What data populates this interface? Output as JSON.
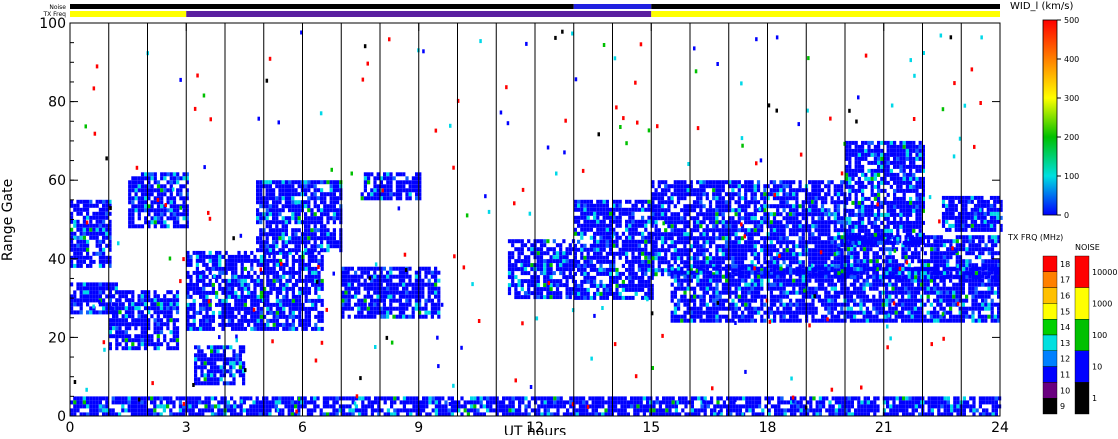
{
  "header_labels": {
    "noise": "Noise",
    "txfreq": "TX Freq"
  },
  "chart_data": {
    "type": "heatmap",
    "xlabel": "UT hours",
    "ylabel": "Range Gate",
    "xlim": [
      0,
      24
    ],
    "ylim": [
      0,
      100
    ],
    "x_ticks": [
      "0",
      "3",
      "6",
      "9",
      "12",
      "15",
      "18",
      "21",
      "24"
    ],
    "y_ticks": [
      "0",
      "20",
      "40",
      "60",
      "80",
      "100"
    ],
    "hour_lines": [
      1,
      2,
      3,
      4,
      5,
      6,
      7,
      8,
      9,
      10,
      11,
      12,
      13,
      14,
      15,
      16,
      17,
      18,
      19,
      20,
      21,
      22,
      23
    ],
    "tx_freq_segments": [
      {
        "start": 0,
        "end": 3,
        "color": "#ffff00"
      },
      {
        "start": 3,
        "end": 15,
        "color": "#5a1fa0"
      },
      {
        "start": 15,
        "end": 24,
        "color": "#ffff00"
      }
    ],
    "noise_segments": [
      {
        "start": 0,
        "end": 13,
        "color": "#000000"
      },
      {
        "start": 13,
        "end": 15,
        "color": "#2020e0"
      },
      {
        "start": 15,
        "end": 24,
        "color": "#000000"
      }
    ],
    "echo_regions": [
      {
        "x0": 0.0,
        "x1": 1.0,
        "y0": 38,
        "y1": 55
      },
      {
        "x0": 0.0,
        "x1": 1.2,
        "y0": 26,
        "y1": 34
      },
      {
        "x0": 1.0,
        "x1": 2.8,
        "y0": 17,
        "y1": 32
      },
      {
        "x0": 1.5,
        "x1": 3.0,
        "y0": 48,
        "y1": 62
      },
      {
        "x0": 3.0,
        "x1": 6.5,
        "y0": 22,
        "y1": 42
      },
      {
        "x0": 3.2,
        "x1": 4.5,
        "y0": 8,
        "y1": 18
      },
      {
        "x0": 4.8,
        "x1": 7.0,
        "y0": 42,
        "y1": 60
      },
      {
        "x0": 7.0,
        "x1": 9.5,
        "y0": 25,
        "y1": 38
      },
      {
        "x0": 7.5,
        "x1": 9.0,
        "y0": 55,
        "y1": 62
      },
      {
        "x0": 11.3,
        "x1": 13.0,
        "y0": 30,
        "y1": 45
      },
      {
        "x0": 13.0,
        "x1": 15.0,
        "y0": 30,
        "y1": 55
      },
      {
        "x0": 15.0,
        "x1": 20.0,
        "y0": 36,
        "y1": 60
      },
      {
        "x0": 15.5,
        "x1": 24.0,
        "y0": 24,
        "y1": 38
      },
      {
        "x0": 19.8,
        "x1": 24.0,
        "y0": 35,
        "y1": 46
      },
      {
        "x0": 20.0,
        "x1": 22.0,
        "y0": 44,
        "y1": 70
      },
      {
        "x0": 22.5,
        "x1": 24.0,
        "y0": 47,
        "y1": 56
      },
      {
        "x0": 0.0,
        "x1": 24.0,
        "y0": 0,
        "y1": 5
      }
    ]
  },
  "colorbar_wid": {
    "title": "WID_l (km/s)",
    "ticks": [
      "500",
      "400",
      "300",
      "200",
      "100",
      "0"
    ],
    "stops": [
      "#ff0000",
      "#ff8000",
      "#ffff00",
      "#00c000",
      "#00e0e0",
      "#0000ff"
    ]
  },
  "colorbar_txfrq": {
    "title": "TX FRQ (MHz)",
    "ticks": [
      "18",
      "17",
      "16",
      "15",
      "14",
      "13",
      "12",
      "11",
      "10",
      "9"
    ],
    "colors": [
      "#ff0000",
      "#ff8000",
      "#ffc000",
      "#ffff00",
      "#00d000",
      "#00e0e0",
      "#0080ff",
      "#0000ff",
      "#6a0080",
      "#000000"
    ]
  },
  "colorbar_noise": {
    "title": "NOISE",
    "ticks": [
      "10000",
      "1000",
      "100",
      "10",
      "1"
    ],
    "colors": [
      "#ff0000",
      "#ffff00",
      "#00c000",
      "#0000ff",
      "#000000"
    ]
  }
}
